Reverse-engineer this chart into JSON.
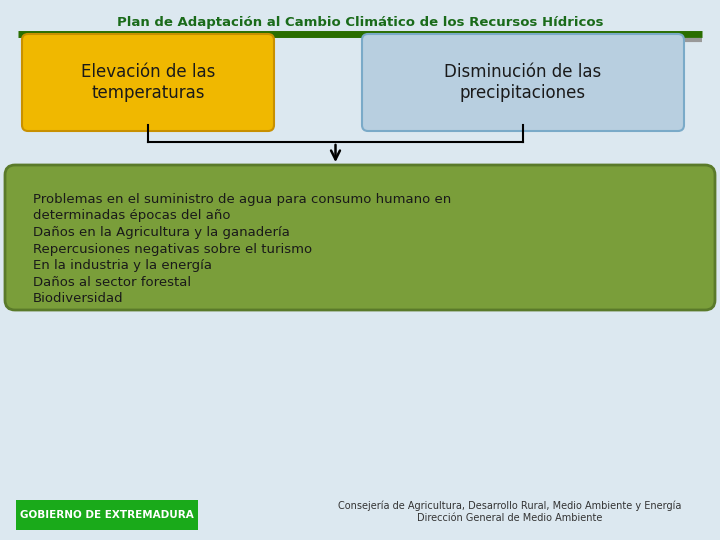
{
  "title": "Plan de Adaptación al Cambio Climático de los Recursos Hídricos",
  "title_color": "#1a6b1a",
  "bg_color": "#dce8f0",
  "line_color_dark": "#2a6e00",
  "line_color_gray": "#999999",
  "box1_text": "Elevación de las\ntemperaturas",
  "box1_facecolor": "#f0b800",
  "box1_edgecolor": "#c89000",
  "box2_text": "Disminución de las\nprecipitaciones",
  "box2_facecolor": "#b8cfe0",
  "box2_edgecolor": "#7aaac8",
  "result_box_facecolor": "#7a9e3a",
  "result_box_edgecolor": "#5a7a2a",
  "result_lines": [
    "Problemas en el suministro de agua para consumo humano en",
    "determinadas épocas del año",
    "Daños en la Agricultura y la ganadería",
    "Repercusiones negativas sobre el turismo",
    "En la industria y la energía",
    "Daños al sector forestal",
    "Biodiversidad"
  ],
  "result_text_color": "#1a1a1a",
  "footer_left_text": "GOBIERNO DE EXTREMADURA",
  "footer_left_bg": "#1aaa1a",
  "footer_left_text_color": "#ffffff",
  "footer_right_line1": "Consejería de Agricultura, Desarrollo Rural, Medio Ambiente y Energía",
  "footer_right_line2": "Dirección General de Medio Ambiente",
  "footer_text_color": "#333333"
}
